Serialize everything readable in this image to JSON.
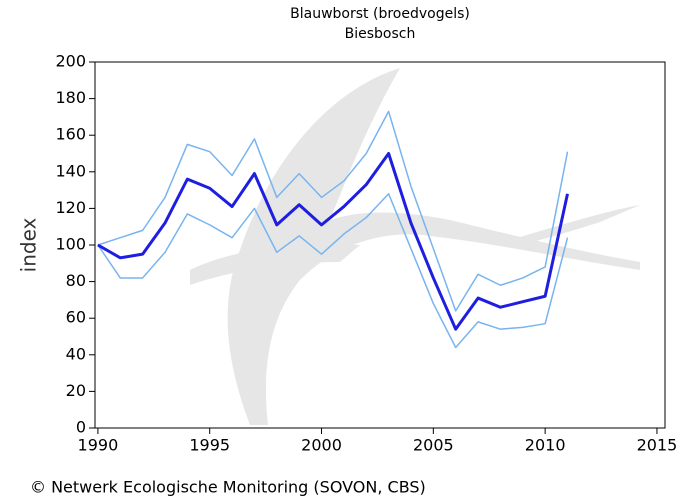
{
  "chart_data": {
    "type": "line",
    "title": "Blauwborst (broedvogels)",
    "subtitle": "Biesbosch",
    "ylabel": "index",
    "footer": "© Netwerk Ecologische Monitoring (SOVON, CBS)",
    "x": [
      1990,
      1991,
      1992,
      1993,
      1994,
      1995,
      1996,
      1997,
      1998,
      1999,
      2000,
      2001,
      2002,
      2003,
      2004,
      2005,
      2006,
      2007,
      2008,
      2009,
      2010,
      2011
    ],
    "series": [
      {
        "color": "#78b4f0",
        "values": [
          100,
          104,
          108,
          126,
          155,
          151,
          138,
          158,
          126,
          139,
          126,
          135,
          150,
          173,
          132,
          98,
          64,
          84,
          78,
          82,
          88,
          151
        ]
      },
      {
        "color": "#78b4f0",
        "values": [
          100,
          82,
          82,
          96,
          117,
          111,
          104,
          120,
          96,
          105,
          95,
          106,
          115,
          128,
          98,
          68,
          44,
          58,
          54,
          55,
          57,
          104
        ]
      },
      {
        "color": "#1e1ee0",
        "values": [
          100,
          93,
          95,
          112,
          136,
          131,
          121,
          139,
          111,
          122,
          111,
          121,
          133,
          150,
          112,
          82,
          54,
          71,
          66,
          69,
          72,
          128
        ]
      }
    ],
    "xlim": [
      1989.87,
      2015.36
    ],
    "xticks": [
      1990,
      1995,
      2000,
      2005,
      2010,
      2015
    ],
    "ylim": [
      0,
      200
    ],
    "yticks": [
      0,
      20,
      40,
      60,
      80,
      100,
      120,
      140,
      160,
      180,
      200
    ]
  }
}
